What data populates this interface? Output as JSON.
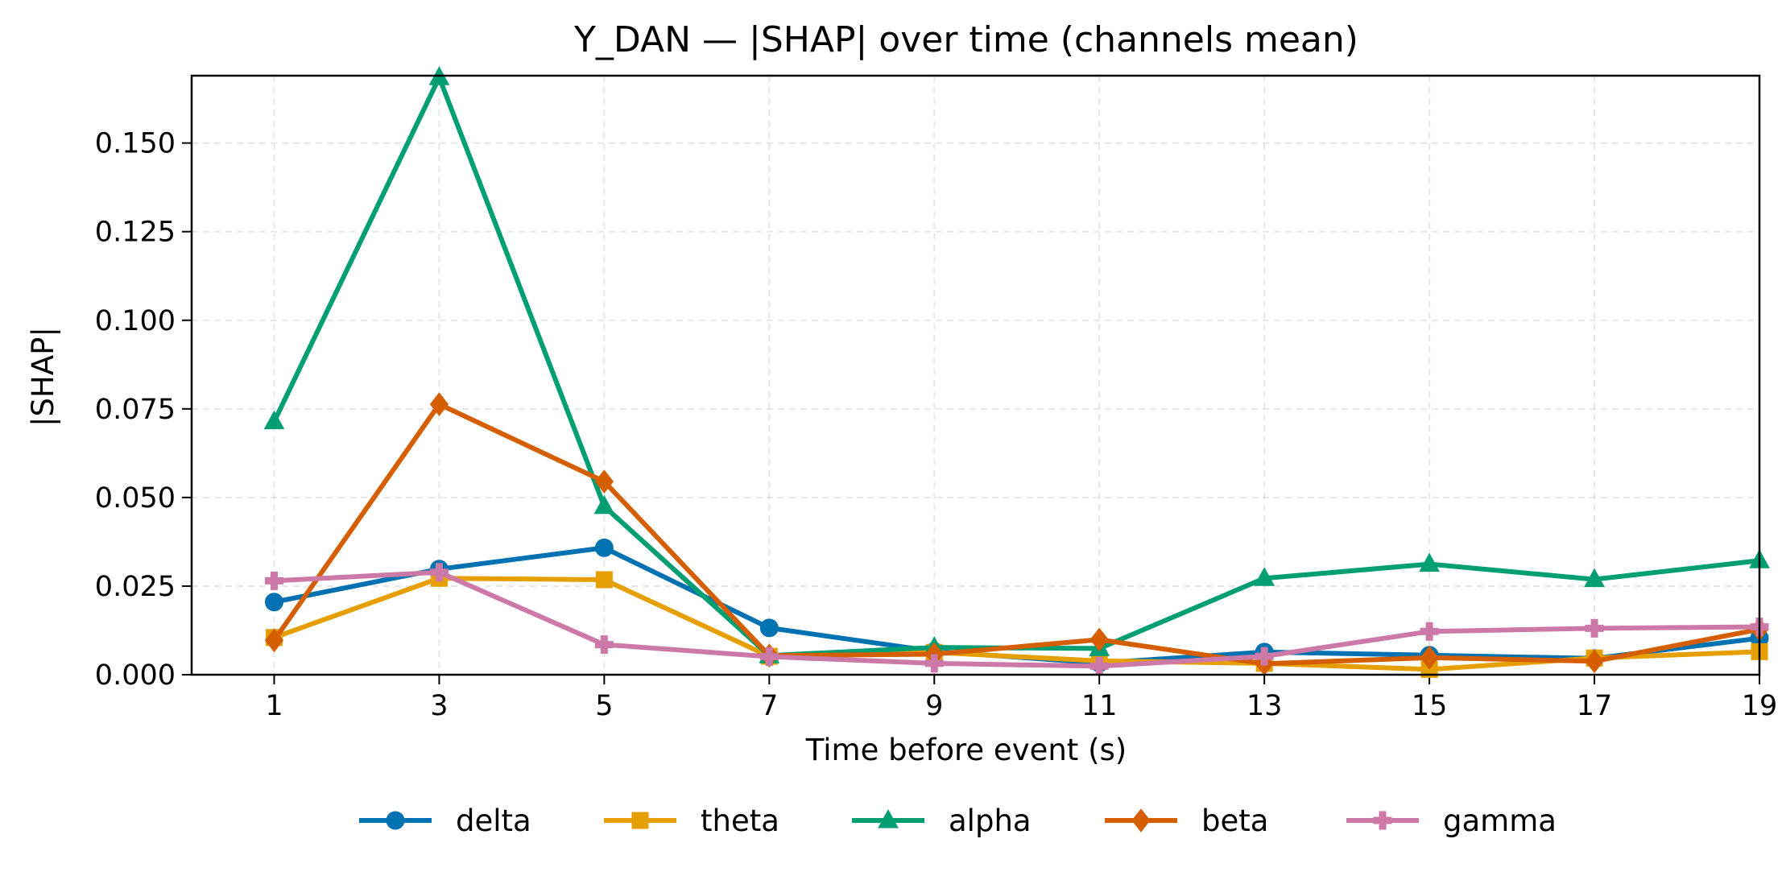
{
  "chart_data": {
    "type": "line",
    "title": "Y_DAN — |SHAP| over time (channels mean)",
    "xlabel": "Time before event (s)",
    "ylabel": "|SHAP|",
    "x": [
      1,
      3,
      5,
      7,
      9,
      11,
      13,
      15,
      17,
      19
    ],
    "x_tick_labels": [
      "1",
      "3",
      "5",
      "7",
      "9",
      "11",
      "13",
      "15",
      "17",
      "19"
    ],
    "y_tick_labels": [
      "0.000",
      "0.025",
      "0.050",
      "0.075",
      "0.100",
      "0.125",
      "0.150"
    ],
    "y_ticks": [
      0,
      0.025,
      0.05,
      0.075,
      0.1,
      0.125,
      0.15
    ],
    "xlim": [
      0,
      19
    ],
    "ylim": [
      0,
      0.169
    ],
    "grid": true,
    "legend_position": "bottom-center",
    "series": [
      {
        "name": "delta",
        "color": "#0072b2",
        "marker": "circle",
        "values": [
          0.0205,
          0.0298,
          0.0358,
          0.0132,
          0.0066,
          0.0033,
          0.0064,
          0.0055,
          0.0046,
          0.0103
        ]
      },
      {
        "name": "theta",
        "color": "#e69f00",
        "marker": "square",
        "values": [
          0.0105,
          0.0272,
          0.0268,
          0.0052,
          0.0063,
          0.0039,
          0.0032,
          0.0015,
          0.0047,
          0.0065
        ]
      },
      {
        "name": "alpha",
        "color": "#009e73",
        "marker": "triangle",
        "values": [
          0.0714,
          0.1685,
          0.0475,
          0.0054,
          0.0077,
          0.0074,
          0.0272,
          0.0312,
          0.0269,
          0.0322
        ]
      },
      {
        "name": "beta",
        "color": "#d55e00",
        "marker": "diamond",
        "values": [
          0.0097,
          0.0763,
          0.0545,
          0.0054,
          0.0058,
          0.0099,
          0.0031,
          0.0048,
          0.0038,
          0.0128
        ]
      },
      {
        "name": "gamma",
        "color": "#cc79a7",
        "marker": "plus",
        "values": [
          0.0265,
          0.0289,
          0.0085,
          0.0051,
          0.0032,
          0.0024,
          0.0052,
          0.0122,
          0.0131,
          0.0135
        ]
      }
    ]
  }
}
